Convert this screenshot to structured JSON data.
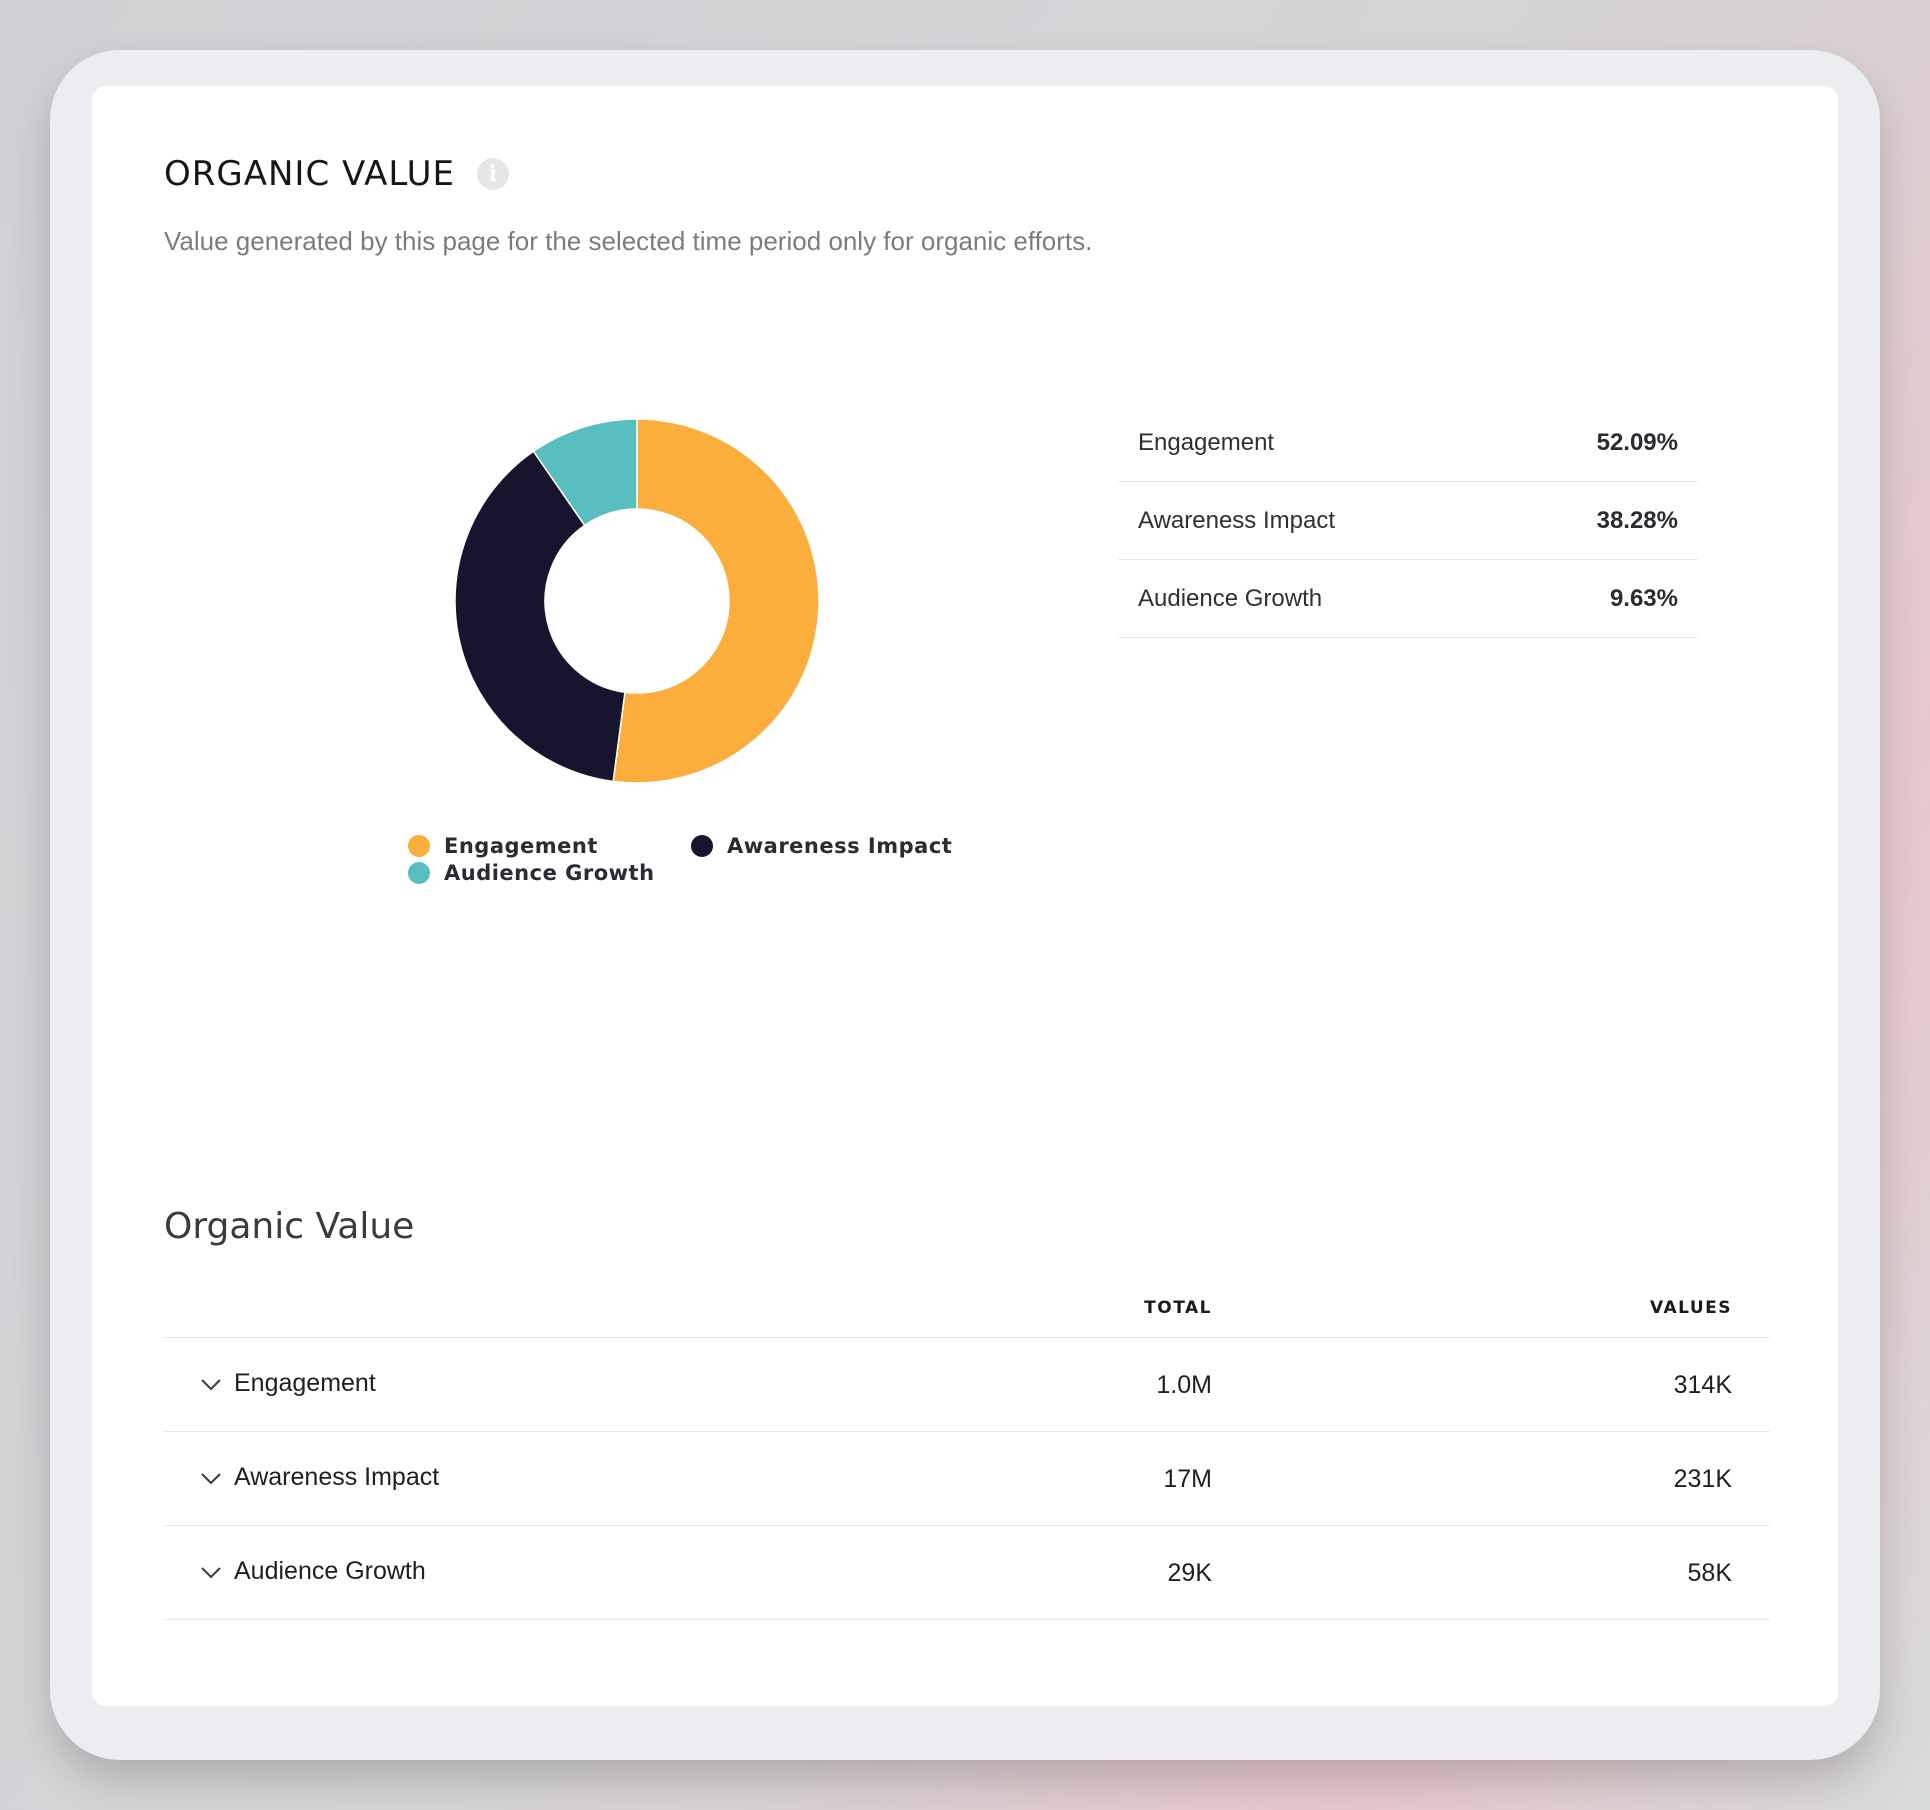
{
  "header": {
    "title": "ORGANIC VALUE",
    "info_icon": "info-icon"
  },
  "subtitle": "Value generated by this page for the selected time period only for organic efforts.",
  "colors": {
    "engagement": "#FBAE3C",
    "awareness": "#17152E",
    "audience": "#58BEC0"
  },
  "chart_data": {
    "type": "pie",
    "categories": [
      "Engagement",
      "Awareness Impact",
      "Audience Growth"
    ],
    "values": [
      52.09,
      38.28,
      9.63
    ],
    "legend": "bottom"
  },
  "legend": {
    "items": [
      {
        "label": "Engagement"
      },
      {
        "label": "Awareness Impact"
      },
      {
        "label": "Audience Growth"
      }
    ]
  },
  "summary": {
    "rows": [
      {
        "label": "Engagement",
        "pct": "52.09%"
      },
      {
        "label": "Awareness Impact",
        "pct": "38.28%"
      },
      {
        "label": "Audience Growth",
        "pct": "9.63%"
      }
    ]
  },
  "section": {
    "title": "Organic Value"
  },
  "table": {
    "headers": {
      "total": "TOTAL",
      "values": "VALUES"
    },
    "rows": [
      {
        "name": "Engagement",
        "total": "1.0M",
        "value": "314K"
      },
      {
        "name": "Awareness Impact",
        "total": "17M",
        "value": "231K"
      },
      {
        "name": "Audience Growth",
        "total": "29K",
        "value": "58K"
      }
    ]
  }
}
